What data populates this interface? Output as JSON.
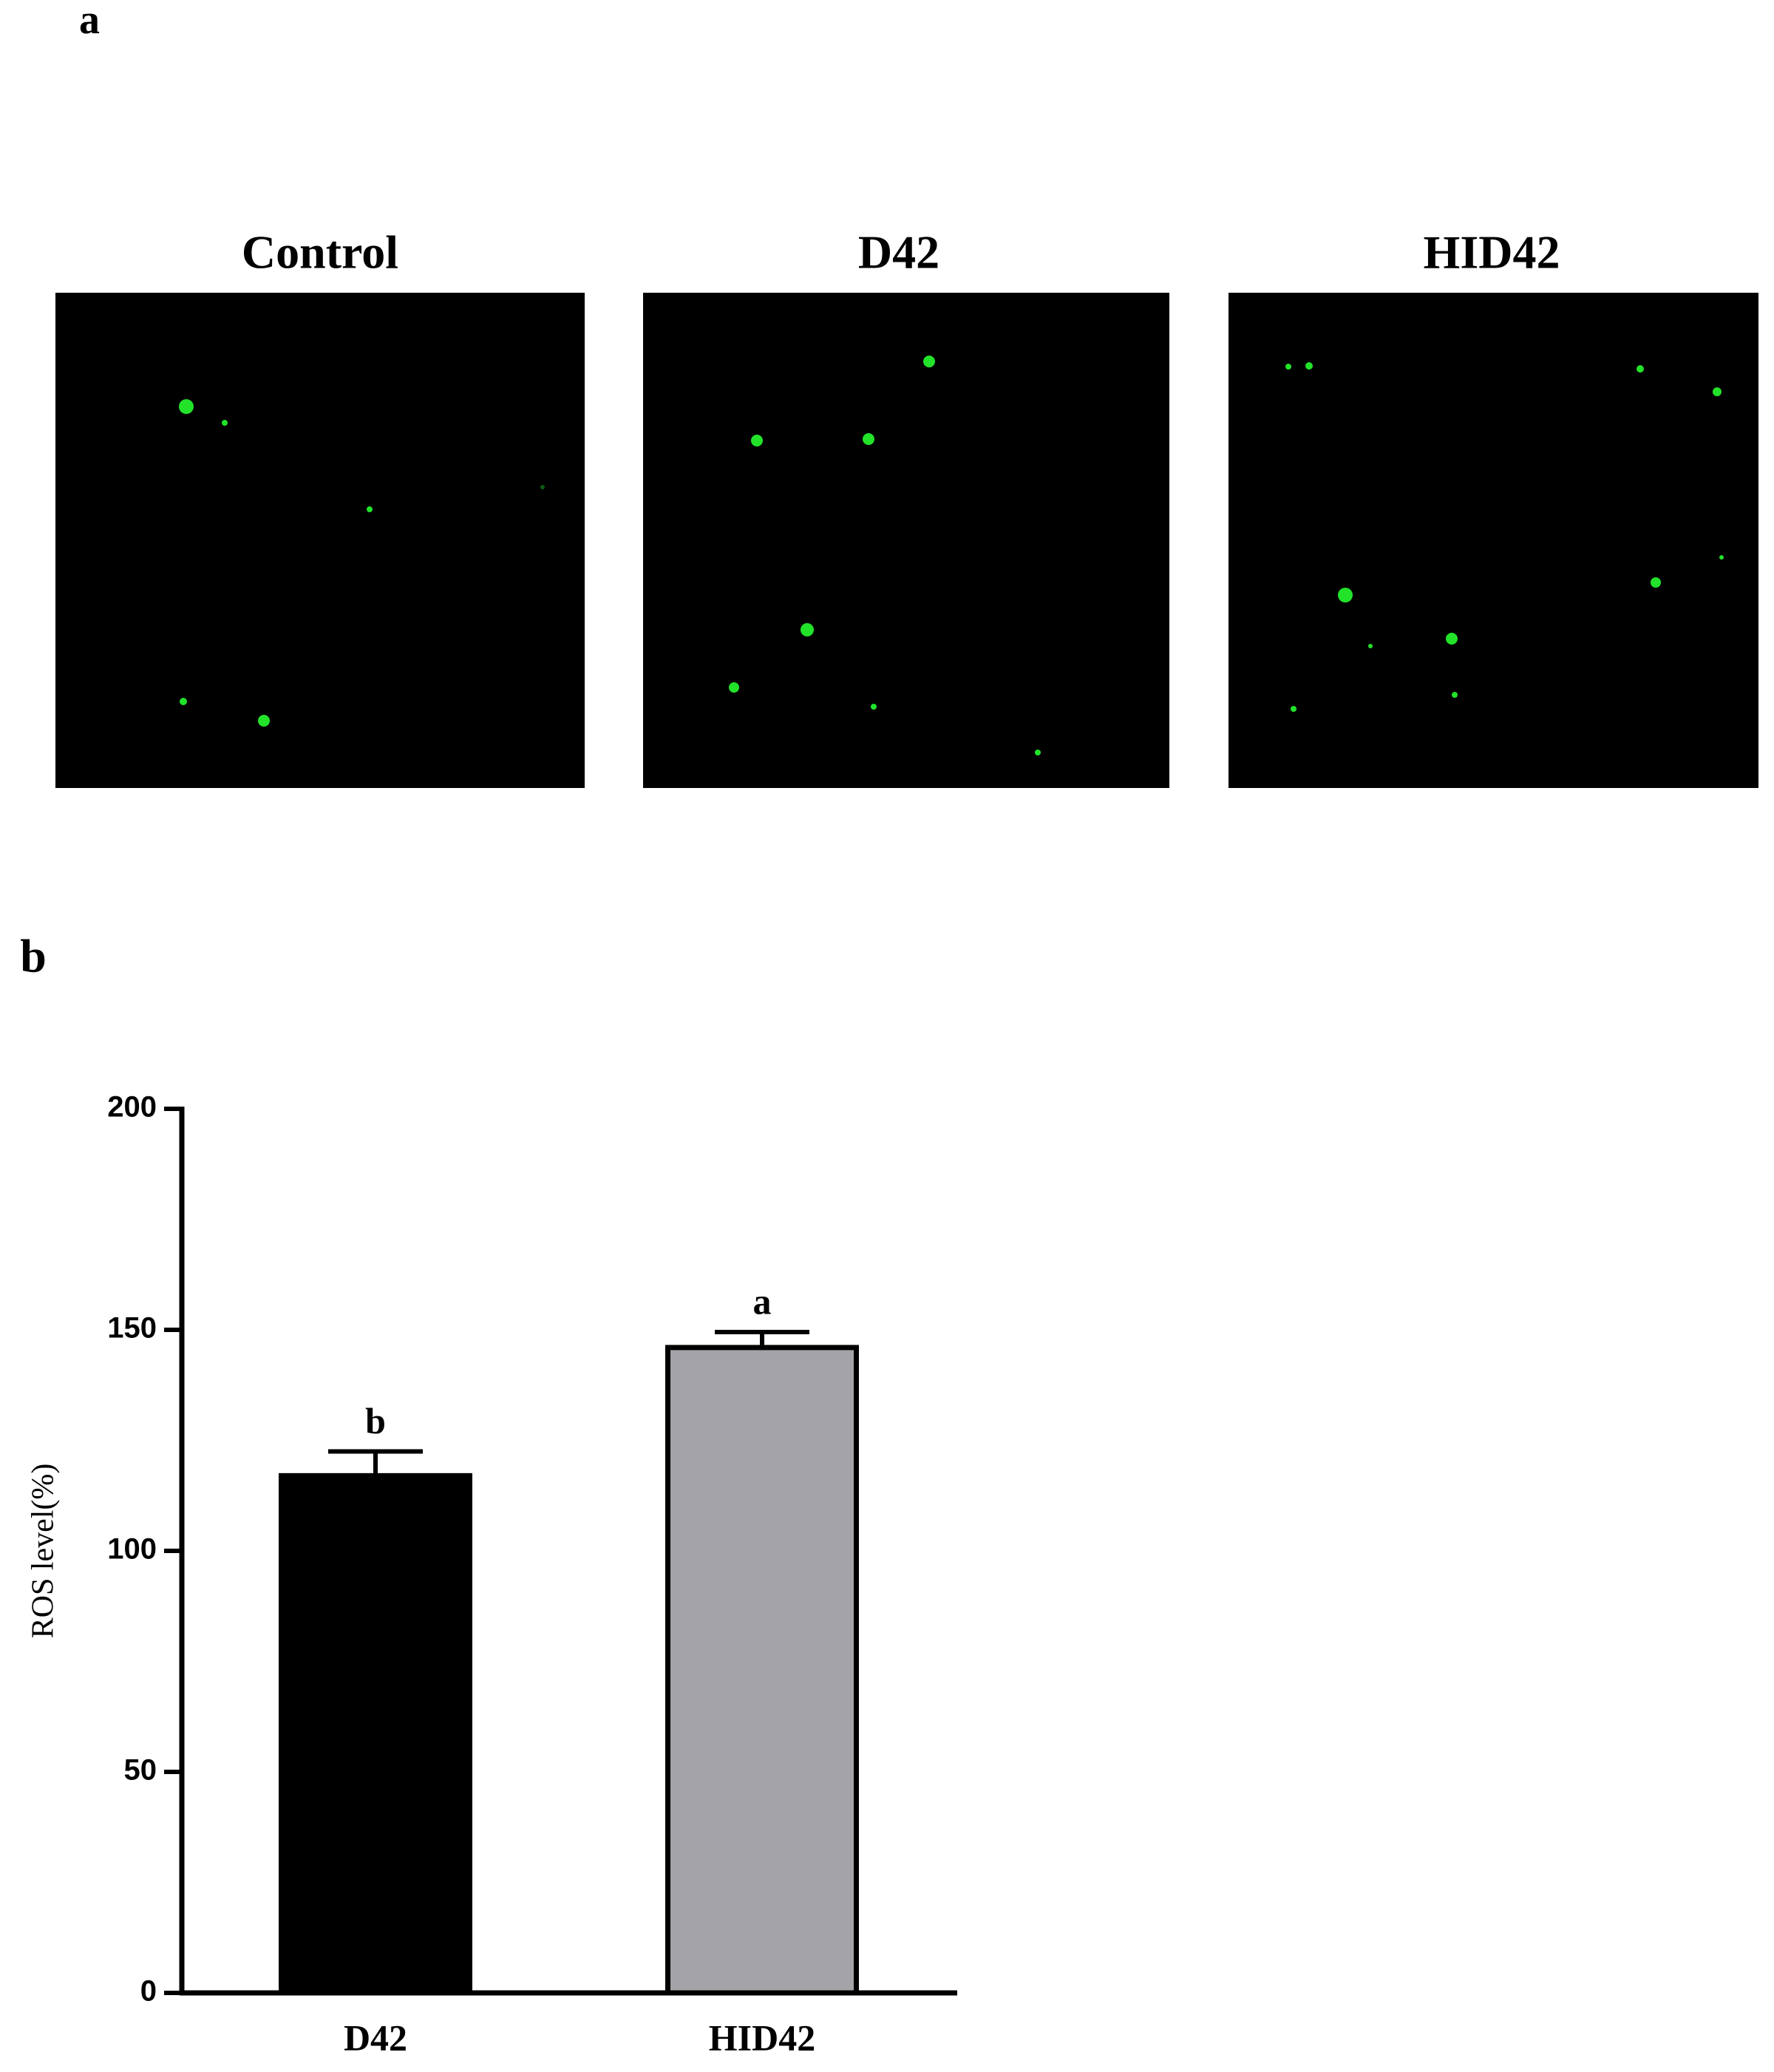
{
  "panel_labels": [
    "a",
    "b"
  ],
  "panels": [
    "Control",
    "D42",
    "HID42"
  ],
  "chart_data": {
    "type": "bar",
    "ylabel": "ROS level(%)",
    "categories": [
      "D42",
      "HID42"
    ],
    "values": [
      117,
      146
    ],
    "errors": [
      5.5,
      3.5
    ],
    "annotations": [
      "b",
      "a"
    ],
    "colors": [
      "#000000",
      "#a4a3a8"
    ],
    "ylim": [
      0,
      200
    ],
    "yticks": [
      0,
      50,
      100,
      150,
      200
    ]
  }
}
